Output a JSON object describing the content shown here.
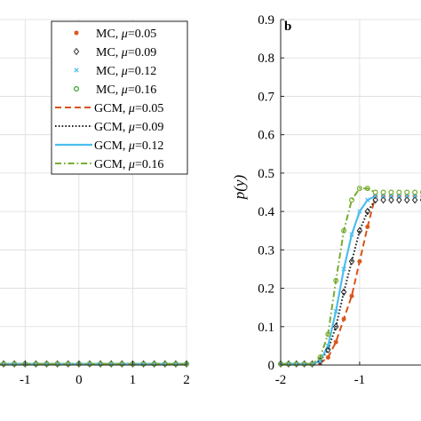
{
  "chart_data": [
    {
      "type": "line",
      "panel_label": "",
      "xlabel": "",
      "ylabel": "",
      "xlim": [
        -1.5,
        2.0
      ],
      "ylim": [
        0,
        0.9
      ],
      "x_ticks": [
        -1,
        0,
        1,
        2
      ],
      "x_tick_labels": [
        "-1",
        "0",
        "1",
        "2"
      ],
      "y_ticks": [
        0,
        0.1,
        0.2,
        0.3,
        0.4,
        0.5,
        0.6,
        0.7,
        0.8,
        0.9
      ],
      "y_tick_labels": [],
      "grid": true,
      "legend": {
        "placement": "top-right",
        "entries": [
          {
            "prefix": "MC, ",
            "mu": "μ",
            "value": "=0.05",
            "style": "marker",
            "marker": "star",
            "color": "#D95319"
          },
          {
            "prefix": "MC, ",
            "mu": "μ",
            "value": "=0.09",
            "style": "marker",
            "marker": "diamond",
            "color": "#333333"
          },
          {
            "prefix": "MC, ",
            "mu": "μ",
            "value": "=0.12",
            "style": "marker",
            "marker": "x",
            "color": "#4DBEEE"
          },
          {
            "prefix": "MC, ",
            "mu": "μ",
            "value": "=0.16",
            "style": "marker",
            "marker": "circle",
            "color": "#2CA02C"
          },
          {
            "prefix": "GCM, ",
            "mu": "μ",
            "value": "=0.05",
            "style": "dashed",
            "color": "#D95319"
          },
          {
            "prefix": "GCM, ",
            "mu": "μ",
            "value": "=0.09",
            "style": "dotted",
            "color": "#222222"
          },
          {
            "prefix": "GCM, ",
            "mu": "μ",
            "value": "=0.12",
            "style": "solid",
            "color": "#4DBEEE"
          },
          {
            "prefix": "GCM, ",
            "mu": "μ",
            "value": "=0.16",
            "style": "dashdot",
            "color": "#77AC30"
          }
        ]
      },
      "mc_points_x": [
        -1.4,
        -1.2,
        -1.0,
        -0.8,
        -0.6,
        -0.4,
        -0.2,
        0.0,
        0.2,
        0.4,
        0.6,
        0.8,
        1.0,
        1.2,
        1.4,
        1.6,
        1.8,
        2.0
      ],
      "series": [
        {
          "mu": "0.05",
          "color": "#D95319",
          "line_style": "dashed",
          "marker": "star",
          "x": [
            -1.5,
            2.0
          ],
          "y": [
            0.003,
            0.003
          ]
        },
        {
          "mu": "0.09",
          "color": "#222222",
          "line_style": "dotted",
          "marker": "diamond",
          "x": [
            -1.5,
            2.0
          ],
          "y": [
            0.003,
            0.003
          ]
        },
        {
          "mu": "0.12",
          "color": "#4DBEEE",
          "line_style": "solid",
          "marker": "x",
          "x": [
            -1.5,
            2.0
          ],
          "y": [
            0.003,
            0.003
          ]
        },
        {
          "mu": "0.16",
          "color": "#77AC30",
          "line_style": "dashdot",
          "marker": "circle",
          "x": [
            -1.5,
            2.0
          ],
          "y": [
            0.003,
            0.003
          ]
        }
      ]
    },
    {
      "type": "line",
      "panel_label": "b",
      "xlabel": "",
      "ylabel": "p(y)",
      "xlim": [
        -2,
        -0.2
      ],
      "ylim": [
        0,
        0.9
      ],
      "x_ticks": [
        -2,
        -1
      ],
      "x_tick_labels": [
        "-2",
        "-1"
      ],
      "y_ticks": [
        0,
        0.1,
        0.2,
        0.3,
        0.4,
        0.5,
        0.6,
        0.7,
        0.8,
        0.9
      ],
      "y_tick_labels": [
        "0",
        "0.1",
        "0.2",
        "0.3",
        "0.4",
        "0.5",
        "0.6",
        "0.7",
        "0.8",
        "0.9"
      ],
      "grid": true,
      "mc_points_x": [
        -2.0,
        -1.9,
        -1.8,
        -1.7,
        -1.6,
        -1.5,
        -1.4,
        -1.3,
        -1.2,
        -1.1,
        -1.0,
        -0.9,
        -0.8,
        -0.7,
        -0.6,
        -0.5,
        -0.4,
        -0.3,
        -0.2
      ],
      "series": [
        {
          "mu": "0.05",
          "color": "#D95319",
          "line_style": "dashed",
          "marker": "star",
          "x": [
            -2.0,
            -1.8,
            -1.6,
            -1.5,
            -1.4,
            -1.3,
            -1.2,
            -1.1,
            -1.0,
            -0.9,
            -0.8
          ],
          "y": [
            0.003,
            0.003,
            0.003,
            0.005,
            0.02,
            0.06,
            0.12,
            0.18,
            0.27,
            0.36,
            0.44
          ]
        },
        {
          "mu": "0.09",
          "color": "#222222",
          "line_style": "dotted",
          "marker": "diamond",
          "x": [
            -2.0,
            -1.8,
            -1.6,
            -1.5,
            -1.4,
            -1.3,
            -1.2,
            -1.1,
            -1.0,
            -0.9,
            -0.8
          ],
          "y": [
            0.003,
            0.003,
            0.003,
            0.01,
            0.04,
            0.1,
            0.19,
            0.27,
            0.35,
            0.4,
            0.43
          ]
        },
        {
          "mu": "0.12",
          "color": "#4DBEEE",
          "line_style": "solid",
          "marker": "x",
          "x": [
            -2.0,
            -1.8,
            -1.6,
            -1.5,
            -1.4,
            -1.3,
            -1.2,
            -1.1,
            -1.0,
            -0.9,
            -0.8
          ],
          "y": [
            0.003,
            0.003,
            0.003,
            0.01,
            0.05,
            0.14,
            0.25,
            0.34,
            0.4,
            0.43,
            0.44
          ]
        },
        {
          "mu": "0.16",
          "color": "#77AC30",
          "line_style": "dashdot",
          "marker": "circle",
          "x": [
            -2.0,
            -1.8,
            -1.6,
            -1.5,
            -1.4,
            -1.3,
            -1.2,
            -1.1,
            -1.0,
            -0.9,
            -0.8
          ],
          "y": [
            0.003,
            0.003,
            0.003,
            0.02,
            0.08,
            0.22,
            0.35,
            0.43,
            0.46,
            0.46,
            0.45
          ]
        }
      ]
    }
  ]
}
